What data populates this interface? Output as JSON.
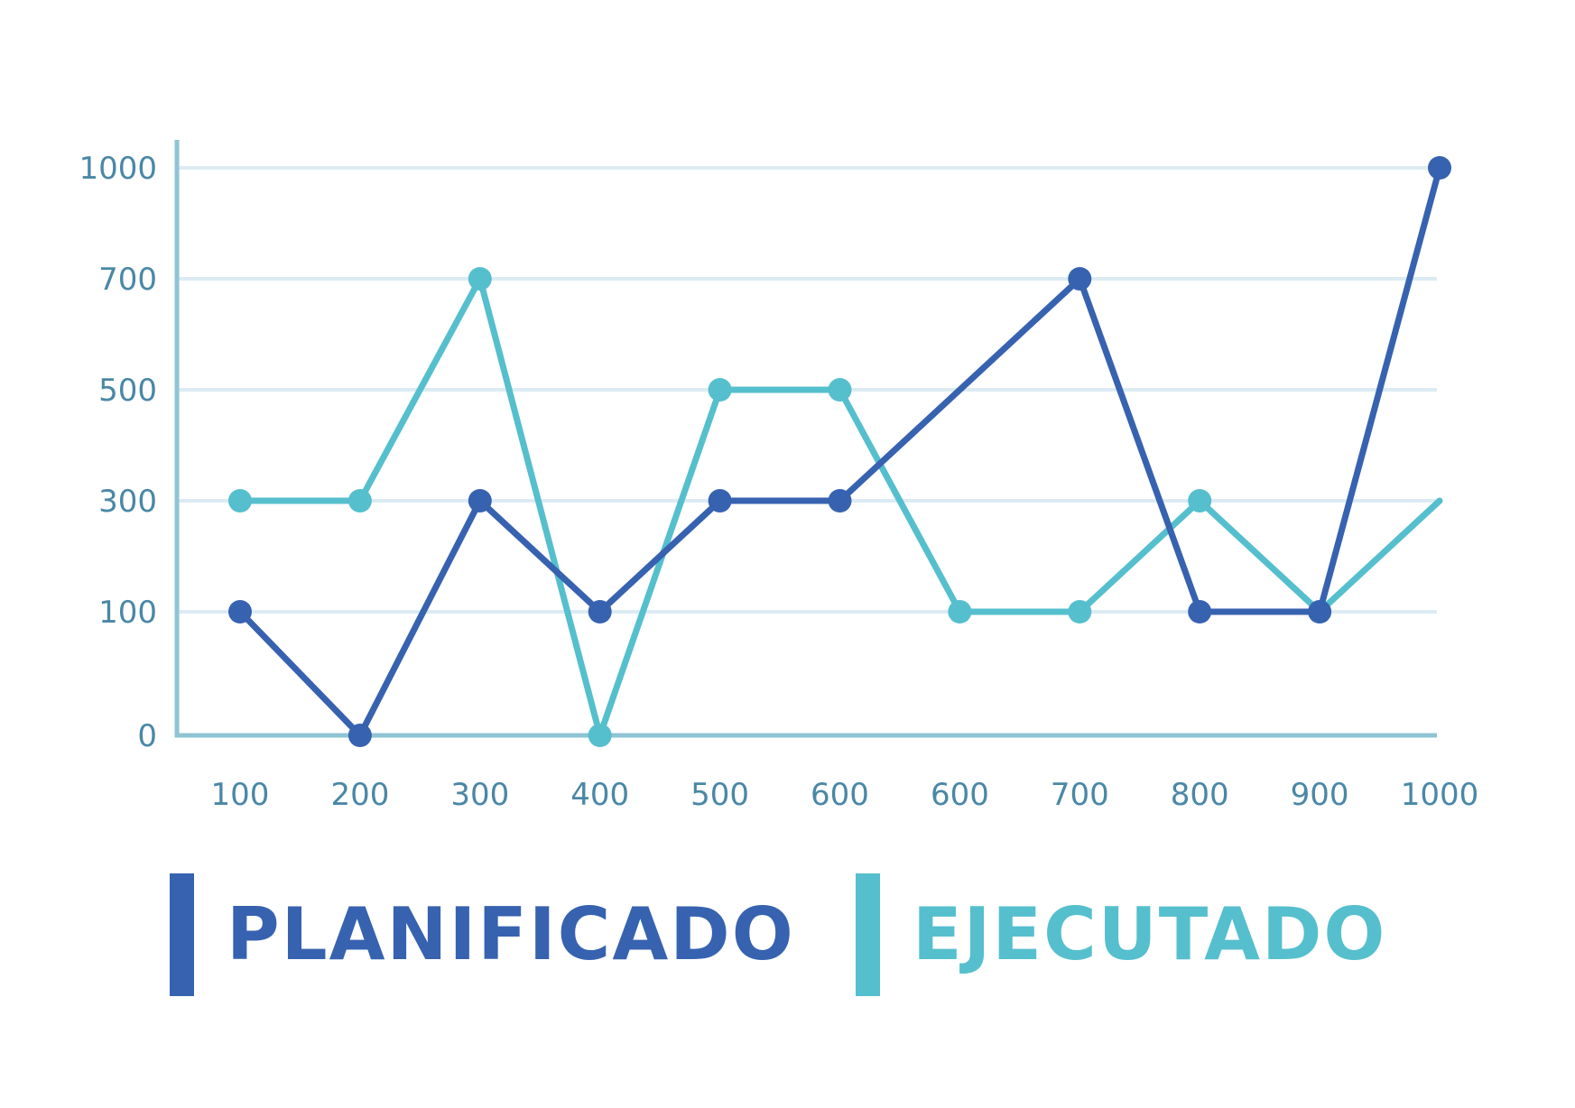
{
  "chart_data": {
    "type": "line",
    "title": "",
    "xlabel": "",
    "ylabel": "",
    "categories": [
      "100",
      "200",
      "300",
      "400",
      "500",
      "600",
      "600",
      "700",
      "800",
      "900",
      "1000"
    ],
    "y_ticks": [
      "0",
      "100",
      "300",
      "500",
      "700",
      "1000"
    ],
    "grid": true,
    "legend_position": "bottom",
    "series": [
      {
        "name": "PLANIFICADO",
        "color": "#3762b0",
        "points": [
          {
            "x": "100",
            "y": 100
          },
          {
            "x": "200",
            "y": 0
          },
          {
            "x": "300",
            "y": 300
          },
          {
            "x": "400",
            "y": 100
          },
          {
            "x": "500",
            "y": 300
          },
          {
            "x": "600",
            "y": 300
          },
          {
            "x": "700",
            "y": 700
          },
          {
            "x": "800",
            "y": 100
          },
          {
            "x": "900",
            "y": 100
          },
          {
            "x": "1000",
            "y": 1000
          }
        ]
      },
      {
        "name": "EJECUTADO",
        "color": "#55bfcd",
        "points": [
          {
            "x": "100",
            "y": 300
          },
          {
            "x": "200",
            "y": 300
          },
          {
            "x": "300",
            "y": 700
          },
          {
            "x": "400",
            "y": 0
          },
          {
            "x": "500",
            "y": 500
          },
          {
            "x": "600",
            "y": 500
          },
          {
            "x": "600",
            "y": 100
          },
          {
            "x": "700",
            "y": 100
          },
          {
            "x": "800",
            "y": 300
          },
          {
            "x": "900",
            "y": 100
          },
          {
            "x": "1000",
            "y": 300
          }
        ]
      }
    ]
  },
  "legend": [
    {
      "label": "PLANIFICADO",
      "color": "#3762b0"
    },
    {
      "label": "EJECUTADO",
      "color": "#55bfcd"
    }
  ],
  "colors": {
    "axis": "#8ec4d3",
    "grid": "#dcebf3",
    "tick_text": "#4a87a6"
  }
}
